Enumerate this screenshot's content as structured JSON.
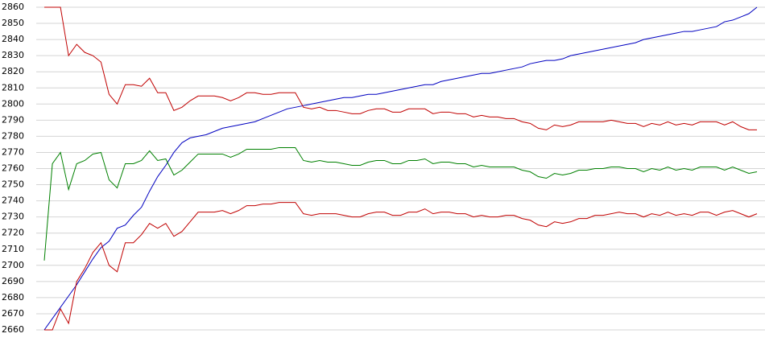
{
  "chart_data": {
    "type": "line",
    "ylim": [
      2660,
      2860
    ],
    "yticks": [
      2660,
      2670,
      2680,
      2690,
      2700,
      2710,
      2720,
      2730,
      2740,
      2750,
      2760,
      2770,
      2780,
      2790,
      2800,
      2810,
      2820,
      2830,
      2840,
      2850,
      2860
    ],
    "grid": true,
    "series": [
      {
        "color": "#0000c0",
        "values": [
          2660,
          2667,
          2674,
          2681,
          2688,
          2696,
          2704,
          2711,
          2715,
          2723,
          2725,
          2731,
          2736,
          2746,
          2755,
          2762,
          2770,
          2776,
          2779,
          2780,
          2781,
          2783,
          2785,
          2786,
          2787,
          2788,
          2789,
          2791,
          2793,
          2795,
          2797,
          2798,
          2799,
          2800,
          2801,
          2802,
          2803,
          2804,
          2804,
          2805,
          2806,
          2806,
          2807,
          2808,
          2809,
          2810,
          2811,
          2812,
          2812,
          2814,
          2815,
          2816,
          2817,
          2818,
          2819,
          2819,
          2820,
          2821,
          2822,
          2823,
          2825,
          2826,
          2827,
          2827,
          2828,
          2830,
          2831,
          2832,
          2833,
          2834,
          2835,
          2836,
          2837,
          2838,
          2840,
          2841,
          2842,
          2843,
          2844,
          2845,
          2845,
          2846,
          2847,
          2848,
          2851,
          2852,
          2854,
          2856,
          2860
        ]
      },
      {
        "color": "#c00000",
        "values": [
          2860,
          2860,
          2860,
          2830,
          2837,
          2832,
          2830,
          2826,
          2806,
          2800,
          2812,
          2812,
          2811,
          2816,
          2807,
          2807,
          2796,
          2798,
          2802,
          2805,
          2805,
          2805,
          2804,
          2802,
          2804,
          2807,
          2807,
          2806,
          2806,
          2807,
          2807,
          2807,
          2798,
          2797,
          2798,
          2796,
          2796,
          2795,
          2794,
          2794,
          2796,
          2797,
          2797,
          2795,
          2795,
          2797,
          2797,
          2797,
          2794,
          2795,
          2795,
          2794,
          2794,
          2792,
          2793,
          2792,
          2792,
          2791,
          2791,
          2789,
          2788,
          2785,
          2784,
          2787,
          2786,
          2787,
          2789,
          2789,
          2789,
          2789,
          2790,
          2789,
          2788,
          2788,
          2786,
          2788,
          2787,
          2789,
          2787,
          2788,
          2787,
          2789,
          2789,
          2789,
          2787,
          2789,
          2786,
          2784,
          2784
        ]
      },
      {
        "color": "#008000",
        "values": [
          2703,
          2763,
          2770,
          2747,
          2763,
          2765,
          2769,
          2770,
          2753,
          2748,
          2763,
          2763,
          2765,
          2771,
          2765,
          2766,
          2756,
          2759,
          2764,
          2769,
          2769,
          2769,
          2769,
          2767,
          2769,
          2772,
          2772,
          2772,
          2772,
          2773,
          2773,
          2773,
          2765,
          2764,
          2765,
          2764,
          2764,
          2763,
          2762,
          2762,
          2764,
          2765,
          2765,
          2763,
          2763,
          2765,
          2765,
          2766,
          2763,
          2764,
          2764,
          2763,
          2763,
          2761,
          2762,
          2761,
          2761,
          2761,
          2761,
          2759,
          2758,
          2755,
          2754,
          2757,
          2756,
          2757,
          2759,
          2759,
          2760,
          2760,
          2761,
          2761,
          2760,
          2760,
          2758,
          2760,
          2759,
          2761,
          2759,
          2760,
          2759,
          2761,
          2761,
          2761,
          2759,
          2761,
          2759,
          2757,
          2758
        ]
      },
      {
        "color": "#c00000",
        "values": [
          2660,
          2660,
          2673,
          2664,
          2690,
          2698,
          2708,
          2714,
          2700,
          2696,
          2714,
          2714,
          2719,
          2726,
          2723,
          2726,
          2718,
          2721,
          2727,
          2733,
          2733,
          2733,
          2734,
          2732,
          2734,
          2737,
          2737,
          2738,
          2738,
          2739,
          2739,
          2739,
          2732,
          2731,
          2732,
          2732,
          2732,
          2731,
          2730,
          2730,
          2732,
          2733,
          2733,
          2731,
          2731,
          2733,
          2733,
          2735,
          2732,
          2733,
          2733,
          2732,
          2732,
          2730,
          2731,
          2730,
          2730,
          2731,
          2731,
          2729,
          2728,
          2725,
          2724,
          2727,
          2726,
          2727,
          2729,
          2729,
          2731,
          2731,
          2732,
          2733,
          2732,
          2732,
          2730,
          2732,
          2731,
          2733,
          2731,
          2732,
          2731,
          2733,
          2733,
          2731,
          2733,
          2734,
          2732,
          2730,
          2732
        ]
      }
    ]
  }
}
